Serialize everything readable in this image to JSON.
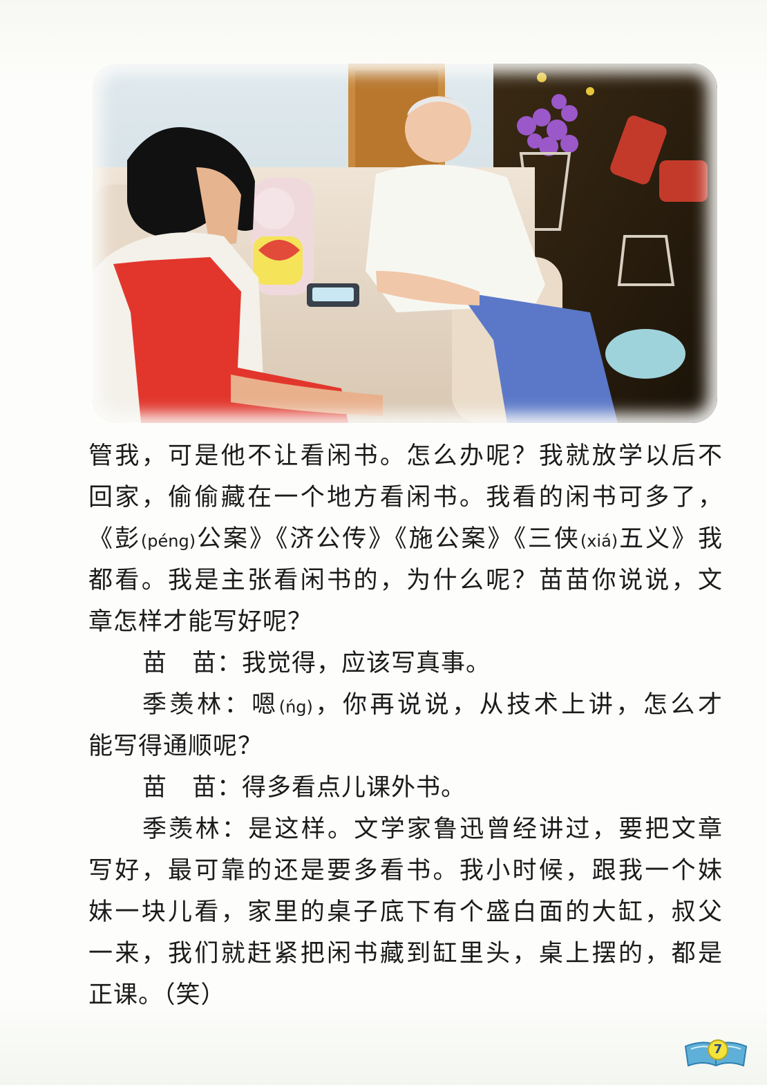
{
  "photo": {
    "icon": "photo-icon"
  },
  "body": {
    "line1": "管我，可是他不让看闲书。怎么办呢？我就放学以后不",
    "line2": "回家，偷偷藏在一个地方看闲书。我看的闲书可多了，",
    "line3": {
      "a": "《彭",
      "a_pinyin": "(péng)",
      "b": "公案》《济公传》《施公案》《三侠",
      "b_pinyin": "(xiá)",
      "c": "五义》我"
    },
    "line4": "都看。我是主张看闲书的，为什么呢？苗苗你说说，文",
    "line5": "章怎样才能写好呢？",
    "line6": "苗　苗：我觉得，应该写真事。",
    "line7": {
      "a": "季羡林：嗯",
      "a_pinyin": "(ńg)",
      "b": "，你再说说，从技术上讲，怎么才"
    },
    "line8": "能写得通顺呢？",
    "line9": "苗　苗：得多看点儿课外书。",
    "line10": "季羡林：是这样。文学家鲁迅曾经讲过，要把文章",
    "line11": "写好，最可靠的还是要多看书。我小时候，跟我一个妹",
    "line12": "妹一块儿看，家里的桌子底下有个盛白面的大缸，叔父",
    "line13": "一来，我们就赶紧把闲书藏到缸里头，桌上摆的，都是",
    "line14": "正课。（笑）"
  },
  "page_number": "7",
  "colors": {
    "text": "#1b1b1b",
    "badge_yellow": "#f3e33a",
    "badge_blue": "#5fb0d8"
  }
}
